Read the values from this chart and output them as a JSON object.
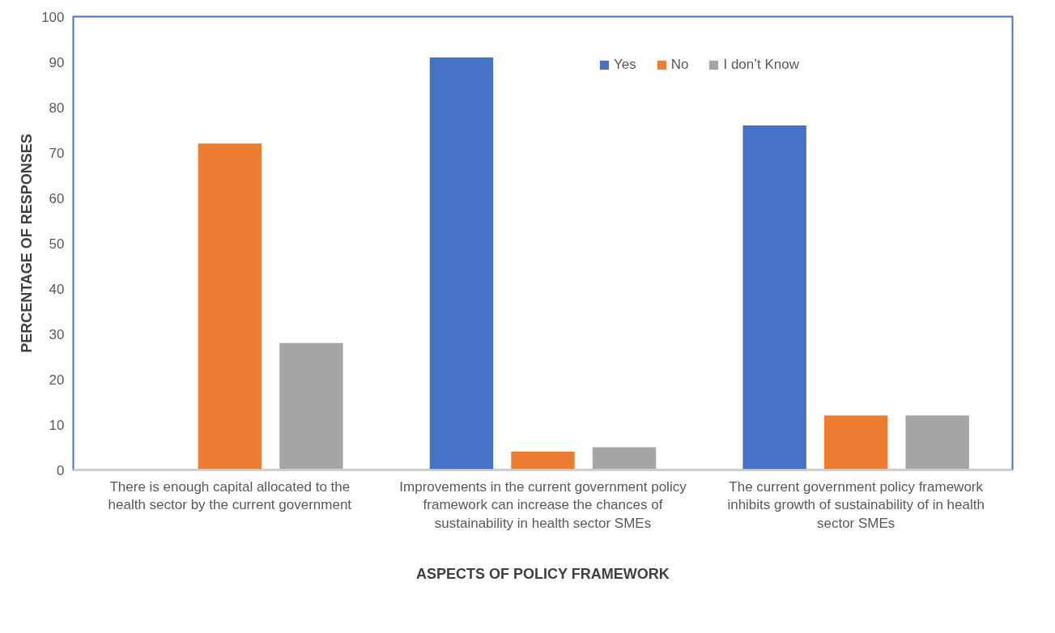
{
  "chart_data": {
    "type": "bar",
    "xlabel": "ASPECTS OF POLICY FRAMEWORK",
    "ylabel": "PERCENTAGE OF RESPONSES",
    "categories": [
      "There is enough capital allocated to the health sector by the current government",
      "Improvements in the current government policy framework can increase the chances of sustainability in health sector SMEs",
      "The current government policy framework inhibits growth of sustainability of in health sector SMEs"
    ],
    "series": [
      {
        "name": "Yes",
        "color": "#4472c4",
        "values": [
          0,
          91,
          76
        ]
      },
      {
        "name": "No",
        "color": "#ed7d31",
        "values": [
          72,
          4,
          12
        ]
      },
      {
        "name": "I don’t Know",
        "color": "#a5a5a5",
        "values": [
          28,
          5,
          12
        ]
      }
    ],
    "ylim": [
      0,
      100
    ],
    "yticks": [
      0,
      10,
      20,
      30,
      40,
      50,
      60,
      70,
      80,
      90,
      100
    ],
    "grid": false,
    "legend": "top"
  }
}
